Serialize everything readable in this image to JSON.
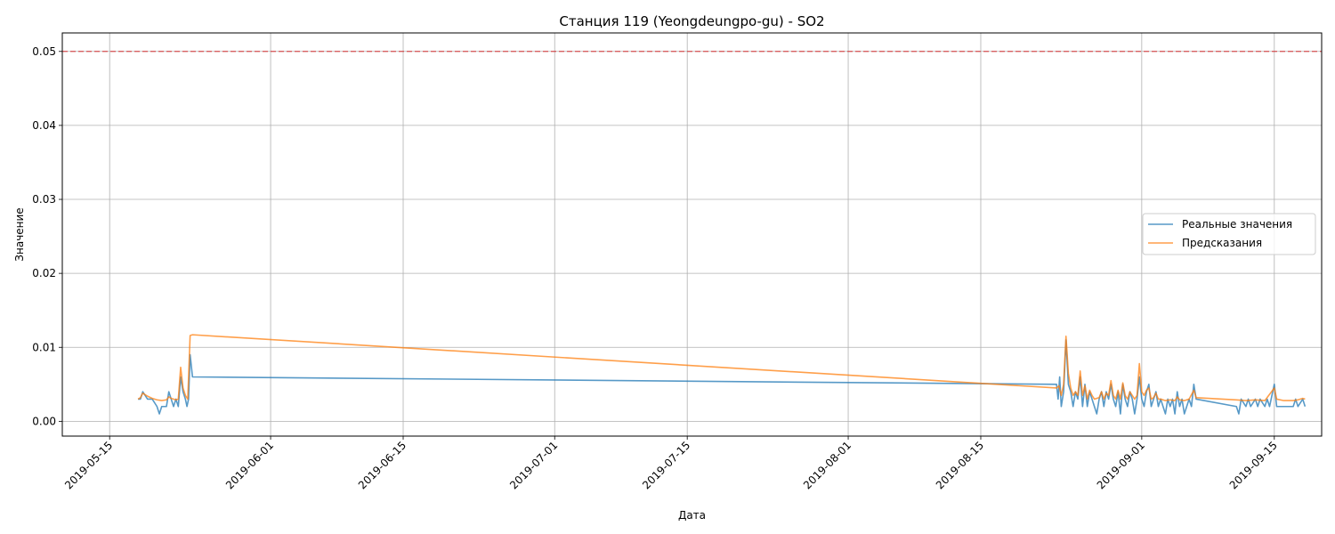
{
  "chart_data": {
    "type": "line",
    "title": "Станция 119 (Yeongdeungpo-gu) - SO2",
    "xlabel": "Дата",
    "ylabel": "Значение",
    "x_type": "date",
    "xlim": [
      "2019-05-10",
      "2019-09-20"
    ],
    "ylim": [
      -0.002,
      0.0525
    ],
    "x_ticks": [
      "2019-05-15",
      "2019-06-01",
      "2019-06-15",
      "2019-07-01",
      "2019-07-15",
      "2019-08-01",
      "2019-08-15",
      "2019-09-01",
      "2019-09-15"
    ],
    "y_ticks": [
      0.0,
      0.01,
      0.02,
      0.03,
      0.04,
      0.05
    ],
    "y_tick_labels": [
      "0.00",
      "0.01",
      "0.02",
      "0.03",
      "0.04",
      "0.05"
    ],
    "grid": true,
    "legend_position": "center-right",
    "threshold": {
      "y": 0.05,
      "color": "#d62728",
      "style": "dashed"
    },
    "series": [
      {
        "name": "Реальные значения",
        "color": "#1f77b4",
        "points": [
          [
            "2019-05-18 00:00",
            0.003
          ],
          [
            "2019-05-18 06:00",
            0.003
          ],
          [
            "2019-05-18 12:00",
            0.004
          ],
          [
            "2019-05-19 00:00",
            0.003
          ],
          [
            "2019-05-19 12:00",
            0.003
          ],
          [
            "2019-05-20 00:00",
            0.002
          ],
          [
            "2019-05-20 06:00",
            0.001
          ],
          [
            "2019-05-20 12:00",
            0.002
          ],
          [
            "2019-05-21 00:00",
            0.002
          ],
          [
            "2019-05-21 06:00",
            0.004
          ],
          [
            "2019-05-21 12:00",
            0.003
          ],
          [
            "2019-05-21 18:00",
            0.002
          ],
          [
            "2019-05-22 00:00",
            0.003
          ],
          [
            "2019-05-22 06:00",
            0.002
          ],
          [
            "2019-05-22 12:00",
            0.006
          ],
          [
            "2019-05-22 18:00",
            0.004
          ],
          [
            "2019-05-23 00:00",
            0.003
          ],
          [
            "2019-05-23 04:00",
            0.002
          ],
          [
            "2019-05-23 08:00",
            0.003
          ],
          [
            "2019-05-23 12:00",
            0.009
          ],
          [
            "2019-05-23 18:00",
            0.006
          ],
          [
            "2019-08-23 00:00",
            0.005
          ],
          [
            "2019-08-23 04:00",
            0.003
          ],
          [
            "2019-08-23 08:00",
            0.006
          ],
          [
            "2019-08-23 12:00",
            0.002
          ],
          [
            "2019-08-23 18:00",
            0.004
          ],
          [
            "2019-08-24 00:00",
            0.011
          ],
          [
            "2019-08-24 06:00",
            0.005
          ],
          [
            "2019-08-24 12:00",
            0.004
          ],
          [
            "2019-08-24 18:00",
            0.002
          ],
          [
            "2019-08-25 00:00",
            0.004
          ],
          [
            "2019-08-25 06:00",
            0.003
          ],
          [
            "2019-08-25 12:00",
            0.006
          ],
          [
            "2019-08-25 18:00",
            0.002
          ],
          [
            "2019-08-26 00:00",
            0.005
          ],
          [
            "2019-08-26 06:00",
            0.002
          ],
          [
            "2019-08-26 12:00",
            0.004
          ],
          [
            "2019-08-26 18:00",
            0.003
          ],
          [
            "2019-08-27 00:00",
            0.002
          ],
          [
            "2019-08-27 06:00",
            0.001
          ],
          [
            "2019-08-27 12:00",
            0.003
          ],
          [
            "2019-08-27 18:00",
            0.004
          ],
          [
            "2019-08-28 00:00",
            0.002
          ],
          [
            "2019-08-28 06:00",
            0.004
          ],
          [
            "2019-08-28 12:00",
            0.003
          ],
          [
            "2019-08-28 18:00",
            0.005
          ],
          [
            "2019-08-29 00:00",
            0.003
          ],
          [
            "2019-08-29 06:00",
            0.002
          ],
          [
            "2019-08-29 12:00",
            0.004
          ],
          [
            "2019-08-29 18:00",
            0.001
          ],
          [
            "2019-08-30 00:00",
            0.005
          ],
          [
            "2019-08-30 06:00",
            0.003
          ],
          [
            "2019-08-30 12:00",
            0.002
          ],
          [
            "2019-08-30 18:00",
            0.004
          ],
          [
            "2019-08-31 00:00",
            0.003
          ],
          [
            "2019-08-31 06:00",
            0.001
          ],
          [
            "2019-08-31 12:00",
            0.003
          ],
          [
            "2019-08-31 18:00",
            0.006
          ],
          [
            "2019-09-01 00:00",
            0.003
          ],
          [
            "2019-09-01 06:00",
            0.002
          ],
          [
            "2019-09-01 12:00",
            0.004
          ],
          [
            "2019-09-01 18:00",
            0.005
          ],
          [
            "2019-09-02 00:00",
            0.002
          ],
          [
            "2019-09-02 06:00",
            0.003
          ],
          [
            "2019-09-02 12:00",
            0.004
          ],
          [
            "2019-09-02 18:00",
            0.002
          ],
          [
            "2019-09-03 00:00",
            0.003
          ],
          [
            "2019-09-03 06:00",
            0.002
          ],
          [
            "2019-09-03 12:00",
            0.001
          ],
          [
            "2019-09-03 18:00",
            0.003
          ],
          [
            "2019-09-04 00:00",
            0.002
          ],
          [
            "2019-09-04 06:00",
            0.003
          ],
          [
            "2019-09-04 12:00",
            0.001
          ],
          [
            "2019-09-04 18:00",
            0.004
          ],
          [
            "2019-09-05 00:00",
            0.002
          ],
          [
            "2019-09-05 06:00",
            0.003
          ],
          [
            "2019-09-05 12:00",
            0.001
          ],
          [
            "2019-09-05 18:00",
            0.002
          ],
          [
            "2019-09-06 00:00",
            0.003
          ],
          [
            "2019-09-06 06:00",
            0.002
          ],
          [
            "2019-09-06 12:00",
            0.005
          ],
          [
            "2019-09-06 18:00",
            0.003
          ],
          [
            "2019-09-11 00:00",
            0.002
          ],
          [
            "2019-09-11 06:00",
            0.001
          ],
          [
            "2019-09-11 12:00",
            0.003
          ],
          [
            "2019-09-12 00:00",
            0.002
          ],
          [
            "2019-09-12 06:00",
            0.003
          ],
          [
            "2019-09-12 12:00",
            0.002
          ],
          [
            "2019-09-13 00:00",
            0.003
          ],
          [
            "2019-09-13 06:00",
            0.002
          ],
          [
            "2019-09-13 12:00",
            0.003
          ],
          [
            "2019-09-14 00:00",
            0.002
          ],
          [
            "2019-09-14 06:00",
            0.003
          ],
          [
            "2019-09-14 12:00",
            0.002
          ],
          [
            "2019-09-15 00:00",
            0.005
          ],
          [
            "2019-09-15 06:00",
            0.002
          ],
          [
            "2019-09-16 00:00",
            0.002
          ],
          [
            "2019-09-17 00:00",
            0.002
          ],
          [
            "2019-09-17 06:00",
            0.003
          ],
          [
            "2019-09-17 12:00",
            0.002
          ],
          [
            "2019-09-18 00:00",
            0.003
          ],
          [
            "2019-09-18 06:00",
            0.002
          ]
        ]
      },
      {
        "name": "Предсказания",
        "color": "#ff7f0e",
        "points": [
          [
            "2019-05-18 00:00",
            0.003
          ],
          [
            "2019-05-18 06:00",
            0.0032
          ],
          [
            "2019-05-18 12:00",
            0.0038
          ],
          [
            "2019-05-19 00:00",
            0.0034
          ],
          [
            "2019-05-19 12:00",
            0.0031
          ],
          [
            "2019-05-20 00:00",
            0.0029
          ],
          [
            "2019-05-20 12:00",
            0.0028
          ],
          [
            "2019-05-21 00:00",
            0.0029
          ],
          [
            "2019-05-21 06:00",
            0.0033
          ],
          [
            "2019-05-21 12:00",
            0.0031
          ],
          [
            "2019-05-22 00:00",
            0.0029
          ],
          [
            "2019-05-22 06:00",
            0.003
          ],
          [
            "2019-05-22 12:00",
            0.0073
          ],
          [
            "2019-05-22 18:00",
            0.0045
          ],
          [
            "2019-05-23 00:00",
            0.0035
          ],
          [
            "2019-05-23 06:00",
            0.003
          ],
          [
            "2019-05-23 12:00",
            0.0116
          ],
          [
            "2019-05-23 18:00",
            0.0117
          ],
          [
            "2019-08-23 00:00",
            0.0045
          ],
          [
            "2019-08-23 06:00",
            0.0048
          ],
          [
            "2019-08-23 12:00",
            0.0035
          ],
          [
            "2019-08-23 18:00",
            0.005
          ],
          [
            "2019-08-24 00:00",
            0.0115
          ],
          [
            "2019-08-24 06:00",
            0.0065
          ],
          [
            "2019-08-24 12:00",
            0.0045
          ],
          [
            "2019-08-24 18:00",
            0.0035
          ],
          [
            "2019-08-25 00:00",
            0.004
          ],
          [
            "2019-08-25 06:00",
            0.0035
          ],
          [
            "2019-08-25 12:00",
            0.0068
          ],
          [
            "2019-08-25 18:00",
            0.0035
          ],
          [
            "2019-08-26 00:00",
            0.0048
          ],
          [
            "2019-08-26 06:00",
            0.003
          ],
          [
            "2019-08-26 12:00",
            0.0042
          ],
          [
            "2019-08-26 18:00",
            0.0035
          ],
          [
            "2019-08-27 00:00",
            0.003
          ],
          [
            "2019-08-27 12:00",
            0.0032
          ],
          [
            "2019-08-27 18:00",
            0.004
          ],
          [
            "2019-08-28 00:00",
            0.003
          ],
          [
            "2019-08-28 06:00",
            0.0038
          ],
          [
            "2019-08-28 12:00",
            0.0035
          ],
          [
            "2019-08-28 18:00",
            0.0055
          ],
          [
            "2019-08-29 00:00",
            0.0035
          ],
          [
            "2019-08-29 06:00",
            0.003
          ],
          [
            "2019-08-29 12:00",
            0.0042
          ],
          [
            "2019-08-29 18:00",
            0.003
          ],
          [
            "2019-08-30 00:00",
            0.0052
          ],
          [
            "2019-08-30 06:00",
            0.0035
          ],
          [
            "2019-08-30 12:00",
            0.003
          ],
          [
            "2019-08-30 18:00",
            0.004
          ],
          [
            "2019-08-31 00:00",
            0.0035
          ],
          [
            "2019-08-31 06:00",
            0.003
          ],
          [
            "2019-08-31 12:00",
            0.0035
          ],
          [
            "2019-08-31 18:00",
            0.0078
          ],
          [
            "2019-09-01 00:00",
            0.004
          ],
          [
            "2019-09-01 06:00",
            0.0035
          ],
          [
            "2019-09-01 12:00",
            0.0042
          ],
          [
            "2019-09-01 18:00",
            0.0045
          ],
          [
            "2019-09-02 00:00",
            0.003
          ],
          [
            "2019-09-02 06:00",
            0.0032
          ],
          [
            "2019-09-02 12:00",
            0.0038
          ],
          [
            "2019-09-02 18:00",
            0.003
          ],
          [
            "2019-09-03 00:00",
            0.003
          ],
          [
            "2019-09-03 12:00",
            0.0028
          ],
          [
            "2019-09-04 00:00",
            0.0029
          ],
          [
            "2019-09-04 12:00",
            0.0028
          ],
          [
            "2019-09-04 18:00",
            0.0033
          ],
          [
            "2019-09-05 00:00",
            0.0029
          ],
          [
            "2019-09-05 12:00",
            0.0028
          ],
          [
            "2019-09-06 00:00",
            0.003
          ],
          [
            "2019-09-06 12:00",
            0.0042
          ],
          [
            "2019-09-06 18:00",
            0.0032
          ],
          [
            "2019-09-11 00:00",
            0.0029
          ],
          [
            "2019-09-12 00:00",
            0.0028
          ],
          [
            "2019-09-13 00:00",
            0.0029
          ],
          [
            "2019-09-14 00:00",
            0.0028
          ],
          [
            "2019-09-15 00:00",
            0.0045
          ],
          [
            "2019-09-15 06:00",
            0.003
          ],
          [
            "2019-09-16 00:00",
            0.0028
          ],
          [
            "2019-09-17 00:00",
            0.0028
          ],
          [
            "2019-09-17 12:00",
            0.0029
          ],
          [
            "2019-09-18 00:00",
            0.0031
          ],
          [
            "2019-09-18 06:00",
            0.003
          ]
        ]
      }
    ]
  }
}
